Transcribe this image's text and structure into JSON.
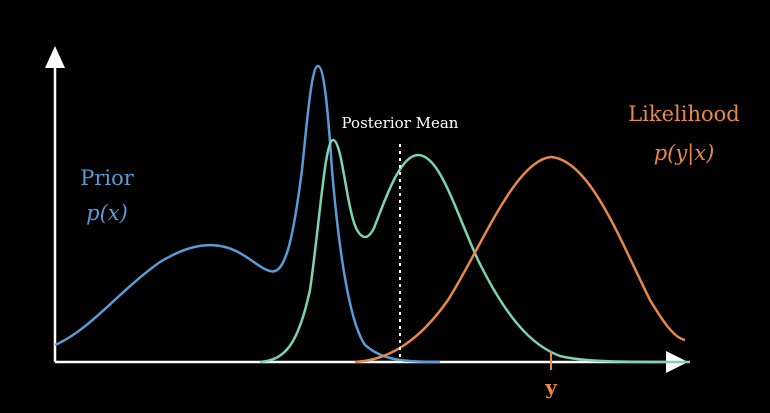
{
  "labels": {
    "prior_title": "Prior",
    "prior_symbol": "p(x)",
    "likelihood_title": "Likelihood",
    "likelihood_symbol": "p(y|x)",
    "posterior_mean": "Posterior Mean",
    "y_marker": "y"
  },
  "colors": {
    "prior": "#5b9bd5",
    "posterior": "#7fd3b0",
    "likelihood": "#e8884a",
    "axis": "#ffffff",
    "background": "#000000"
  },
  "icons": {
    "x_axis_arrow": "arrow-right-icon",
    "y_axis_arrow": "arrow-up-icon"
  }
}
